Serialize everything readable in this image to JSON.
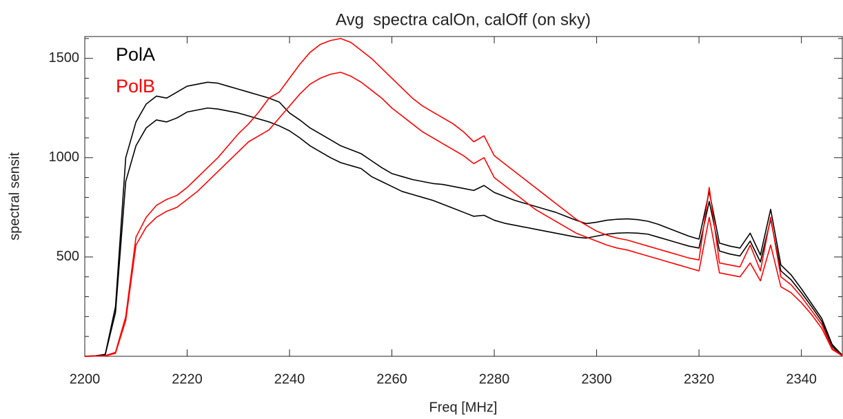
{
  "chart_data": {
    "type": "line",
    "title": "Avg  spectra calOn, calOff (on sky)",
    "xlabel": "Freq [MHz]",
    "ylabel": "spectral sensit",
    "legend": [
      {
        "name": "PolA",
        "color": "#000000"
      },
      {
        "name": "PolB",
        "color": "#ff0000"
      }
    ],
    "legend_position": "upper left",
    "x": [
      2200,
      2202,
      2204,
      2206,
      2208,
      2210,
      2212,
      2214,
      2216,
      2218,
      2220,
      2222,
      2224,
      2226,
      2228,
      2230,
      2232,
      2234,
      2236,
      2238,
      2240,
      2242,
      2244,
      2246,
      2248,
      2250,
      2252,
      2254,
      2256,
      2258,
      2260,
      2262,
      2264,
      2266,
      2268,
      2270,
      2272,
      2274,
      2276,
      2278,
      2280,
      2282,
      2284,
      2286,
      2288,
      2290,
      2292,
      2294,
      2296,
      2298,
      2300,
      2302,
      2304,
      2306,
      2308,
      2310,
      2312,
      2314,
      2316,
      2318,
      2320,
      2322,
      2324,
      2326,
      2328,
      2330,
      2332,
      2334,
      2336,
      2338,
      2340,
      2342,
      2344,
      2346,
      2348
    ],
    "series": [
      {
        "color": "#000000",
        "values": [
          0,
          2,
          10,
          250,
          1000,
          1180,
          1270,
          1310,
          1300,
          1330,
          1360,
          1370,
          1380,
          1375,
          1360,
          1345,
          1330,
          1315,
          1300,
          1280,
          1225,
          1190,
          1150,
          1120,
          1090,
          1060,
          1040,
          1020,
          985,
          950,
          920,
          905,
          890,
          880,
          870,
          865,
          855,
          845,
          835,
          860,
          825,
          805,
          785,
          770,
          755,
          740,
          725,
          705,
          685,
          668,
          675,
          685,
          690,
          692,
          688,
          680,
          665,
          645,
          625,
          605,
          590,
          830,
          570,
          555,
          545,
          620,
          510,
          740,
          460,
          410,
          340,
          265,
          190,
          60,
          5
        ]
      },
      {
        "color": "#000000",
        "values": [
          0,
          2,
          8,
          220,
          880,
          1060,
          1150,
          1190,
          1180,
          1200,
          1230,
          1240,
          1250,
          1245,
          1235,
          1225,
          1210,
          1195,
          1180,
          1160,
          1135,
          1100,
          1060,
          1030,
          1000,
          975,
          960,
          945,
          905,
          880,
          855,
          830,
          815,
          800,
          785,
          765,
          745,
          725,
          705,
          710,
          685,
          670,
          660,
          650,
          640,
          630,
          620,
          610,
          600,
          595,
          605,
          615,
          620,
          622,
          620,
          615,
          600,
          585,
          570,
          555,
          545,
          780,
          530,
          515,
          505,
          580,
          475,
          690,
          430,
          385,
          320,
          250,
          175,
          50,
          4
        ]
      },
      {
        "color": "#ff0000",
        "values": [
          0,
          1,
          3,
          20,
          200,
          600,
          700,
          760,
          790,
          810,
          850,
          900,
          950,
          1000,
          1060,
          1120,
          1170,
          1230,
          1300,
          1330,
          1400,
          1470,
          1530,
          1570,
          1590,
          1600,
          1580,
          1540,
          1500,
          1450,
          1400,
          1350,
          1300,
          1260,
          1230,
          1200,
          1170,
          1130,
          1080,
          1110,
          1010,
          970,
          930,
          890,
          850,
          810,
          770,
          730,
          690,
          660,
          630,
          610,
          595,
          585,
          570,
          555,
          540,
          525,
          510,
          495,
          485,
          850,
          470,
          460,
          450,
          560,
          430,
          700,
          400,
          360,
          300,
          230,
          160,
          40,
          3
        ]
      },
      {
        "color": "#ff0000",
        "values": [
          0,
          1,
          2,
          15,
          180,
          560,
          650,
          700,
          730,
          750,
          790,
          830,
          880,
          930,
          980,
          1030,
          1080,
          1110,
          1140,
          1200,
          1260,
          1320,
          1370,
          1400,
          1420,
          1430,
          1410,
          1380,
          1340,
          1300,
          1250,
          1210,
          1170,
          1130,
          1100,
          1070,
          1040,
          1010,
          970,
          1000,
          900,
          860,
          820,
          780,
          740,
          710,
          680,
          650,
          620,
          600,
          580,
          560,
          545,
          535,
          520,
          505,
          490,
          475,
          460,
          445,
          430,
          700,
          420,
          410,
          400,
          470,
          380,
          560,
          350,
          320,
          270,
          210,
          140,
          35,
          2
        ]
      }
    ],
    "xlim": [
      2200,
      2348
    ],
    "ylim": [
      0,
      1610
    ],
    "xticks": [
      2200,
      2220,
      2240,
      2260,
      2280,
      2300,
      2320,
      2340
    ],
    "yticks": [
      500,
      1000,
      1500
    ],
    "yticks_minor": [
      100,
      200,
      300,
      400,
      600,
      700,
      800,
      900,
      1100,
      1200,
      1300,
      1400,
      1600
    ],
    "grid": false
  }
}
